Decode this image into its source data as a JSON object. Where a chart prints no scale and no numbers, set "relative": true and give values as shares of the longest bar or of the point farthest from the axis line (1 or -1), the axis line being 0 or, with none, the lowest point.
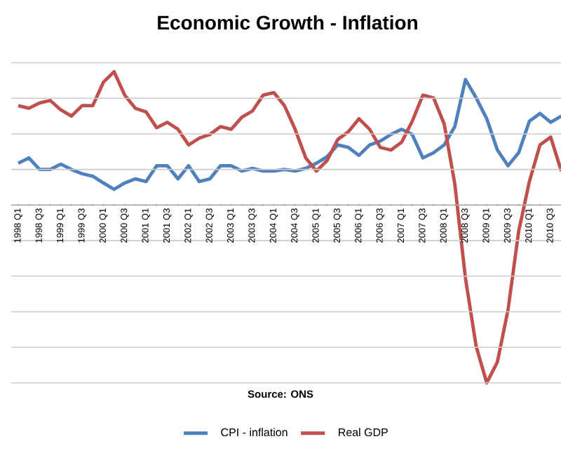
{
  "chart_data": {
    "type": "line",
    "title": "Economic Growth - Inflation",
    "relative": true,
    "grid": "y",
    "legend": "bottom",
    "marker": "none",
    "line_style": "solid",
    "tick_labels": "x",
    "annotations": [
      "Source: ONS"
    ],
    "categories": [
      "1998 Q1",
      null,
      "1998 Q3",
      null,
      "1999 Q1",
      null,
      "1999 Q3",
      null,
      "2000 Q1",
      null,
      "2000 Q3",
      null,
      "2001 Q1",
      null,
      "2001 Q3",
      null,
      "2002 Q1",
      null,
      "2002 Q3",
      null,
      "2003 Q1",
      null,
      "2003 Q3",
      null,
      "2004 Q1",
      null,
      "2004 Q3",
      null,
      "2005 Q1",
      null,
      "2005 Q3",
      null,
      "2006 Q1",
      null,
      "2006 Q3",
      null,
      "2007 Q1",
      null,
      "2007 Q3",
      null,
      "2008 Q1",
      null,
      "2008 Q3",
      null,
      "2009 Q1",
      null,
      "2009 Q3",
      null,
      "2010 Q1",
      null,
      "2010 Q3",
      null
    ],
    "series": [
      {
        "name": "CPI - inflation",
        "color": "#4f81bd",
        "values": [
          0.235,
          0.265,
          0.2,
          0.2,
          0.23,
          0.2,
          0.176,
          0.162,
          0.124,
          0.088,
          0.124,
          0.147,
          0.132,
          0.221,
          0.221,
          0.147,
          0.221,
          0.132,
          0.147,
          0.221,
          0.221,
          0.191,
          0.206,
          0.191,
          0.191,
          0.2,
          0.191,
          0.206,
          0.235,
          0.271,
          0.338,
          0.324,
          0.279,
          0.338,
          0.359,
          0.397,
          0.426,
          0.397,
          0.265,
          0.294,
          0.338,
          0.441,
          0.706,
          0.603,
          0.485,
          0.309,
          0.221,
          0.294,
          0.471,
          0.515,
          0.465,
          0.5
        ]
      },
      {
        "name": "Real GDP",
        "color": "#c0504d",
        "values": [
          0.559,
          0.544,
          0.574,
          0.588,
          0.535,
          0.5,
          0.559,
          0.559,
          0.691,
          0.75,
          0.618,
          0.544,
          0.524,
          0.435,
          0.465,
          0.426,
          0.338,
          0.376,
          0.397,
          0.441,
          0.426,
          0.494,
          0.529,
          0.618,
          0.632,
          0.559,
          0.426,
          0.265,
          0.191,
          0.25,
          0.368,
          0.412,
          0.485,
          0.426,
          0.324,
          0.309,
          0.353,
          0.471,
          0.618,
          0.603,
          0.456,
          0.118,
          -0.412,
          -0.794,
          -1,
          -0.882,
          -0.588,
          -0.147,
          0.132,
          0.338,
          0.382,
          0.191
        ]
      }
    ]
  }
}
